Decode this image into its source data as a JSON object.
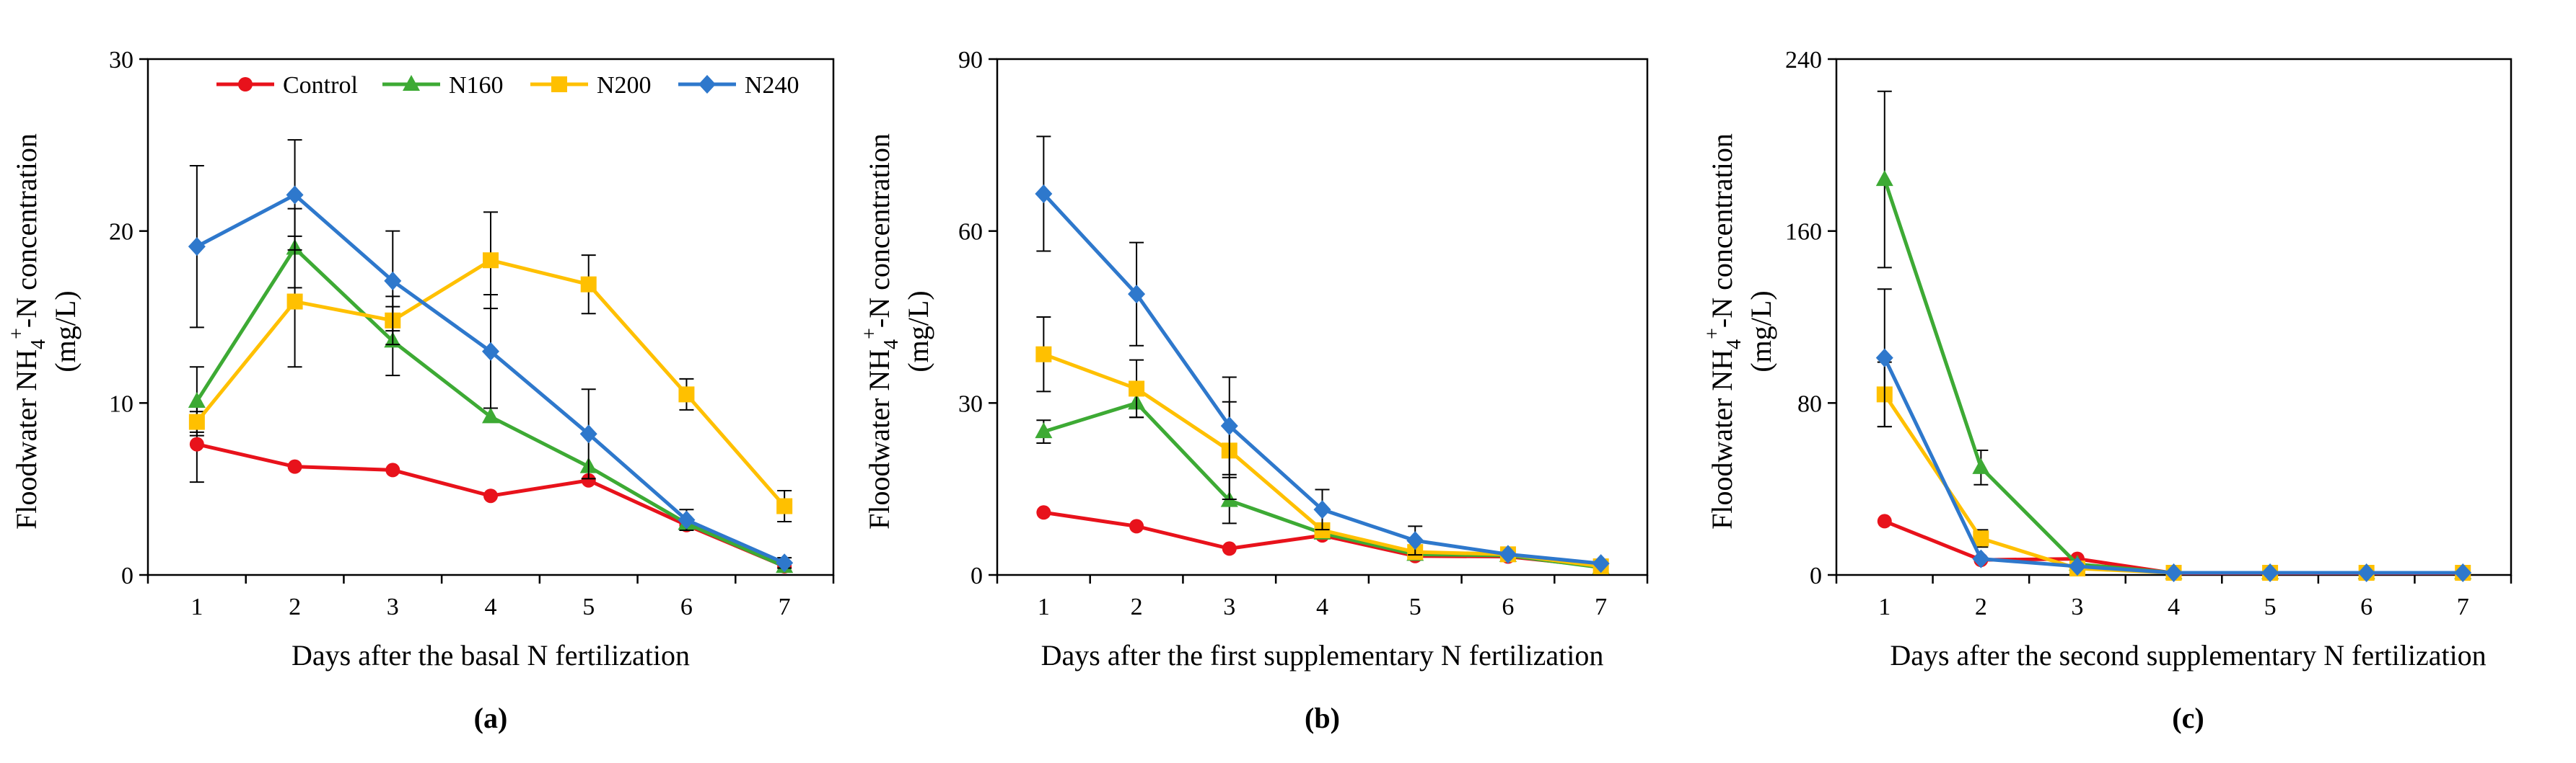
{
  "chart_data": [
    {
      "type": "line",
      "panel_label": "(a)",
      "xlabel": "Days after the basal N fertilization",
      "ylabel_main": "Floodwater NH",
      "ylabel_sub": "4",
      "ylabel_sup": "+",
      "ylabel_tail": "-N concentration",
      "ylabel_unit": "(mg/L)",
      "x": [
        1,
        2,
        3,
        4,
        5,
        6,
        7
      ],
      "x_ticks": [
        "1",
        "2",
        "3",
        "4",
        "5",
        "6",
        "7"
      ],
      "ylim": [
        0,
        30
      ],
      "y_ticks": [
        "0",
        "10",
        "20",
        "30"
      ],
      "legend_position": "top",
      "series": [
        {
          "name": "Control",
          "color": "#E8121B",
          "marker": "circle",
          "values": [
            7.6,
            6.3,
            6.1,
            4.6,
            5.5,
            2.9,
            0.5
          ],
          "errors": [
            2.2,
            0,
            0,
            0,
            0,
            0,
            0
          ]
        },
        {
          "name": "N160",
          "color": "#3DAA34",
          "marker": "triangle",
          "values": [
            10.1,
            19.0,
            13.6,
            9.2,
            6.3,
            3.0,
            0.5
          ],
          "errors": [
            2.0,
            2.3,
            2.0,
            0,
            0,
            0,
            0
          ]
        },
        {
          "name": "N200",
          "color": "#FFC000",
          "marker": "square",
          "values": [
            8.9,
            15.9,
            14.8,
            18.3,
            16.9,
            10.5,
            4.0
          ],
          "errors": [
            0.6,
            3.8,
            1.4,
            2.8,
            1.7,
            0.9,
            0.9
          ]
        },
        {
          "name": "N240",
          "color": "#2E78CC",
          "marker": "diamond",
          "values": [
            19.1,
            22.1,
            17.1,
            13.0,
            8.2,
            3.2,
            0.7
          ],
          "errors": [
            4.7,
            3.2,
            2.9,
            3.3,
            2.6,
            0.6,
            0.3
          ]
        }
      ]
    },
    {
      "type": "line",
      "panel_label": "(b)",
      "xlabel": "Days after the first supplementary N fertilization",
      "ylabel_main": "Floodwater NH",
      "ylabel_sub": "4",
      "ylabel_sup": "+",
      "ylabel_tail": "-N concentration",
      "ylabel_unit": "(mg/L)",
      "x": [
        1,
        2,
        3,
        4,
        5,
        6,
        7
      ],
      "x_ticks": [
        "1",
        "2",
        "3",
        "4",
        "5",
        "6",
        "7"
      ],
      "ylim": [
        0,
        90
      ],
      "y_ticks": [
        "0",
        "30",
        "60",
        "90"
      ],
      "series": [
        {
          "name": "Control",
          "color": "#E8121B",
          "marker": "circle",
          "values": [
            10.9,
            8.5,
            4.6,
            6.9,
            3.3,
            3.2,
            1.5
          ],
          "errors": [
            0,
            0,
            0,
            0,
            0,
            0,
            0
          ]
        },
        {
          "name": "N160",
          "color": "#3DAA34",
          "marker": "triangle",
          "values": [
            25.0,
            30.0,
            13.0,
            7.3,
            3.6,
            3.4,
            1.3
          ],
          "errors": [
            2.0,
            2.5,
            4.0,
            0,
            0,
            0,
            0
          ]
        },
        {
          "name": "N200",
          "color": "#FFC000",
          "marker": "square",
          "values": [
            38.5,
            32.5,
            21.7,
            7.8,
            4.0,
            3.6,
            1.5
          ],
          "errors": [
            6.5,
            5.0,
            8.5,
            0,
            0,
            0,
            0
          ]
        },
        {
          "name": "N240",
          "color": "#2E78CC",
          "marker": "diamond",
          "values": [
            66.5,
            49.0,
            26.0,
            11.4,
            6.0,
            3.6,
            2.0
          ],
          "errors": [
            10.0,
            9.0,
            8.5,
            3.5,
            2.5,
            0,
            0
          ]
        }
      ]
    },
    {
      "type": "line",
      "panel_label": "(c)",
      "xlabel": "Days after the second supplementary N fertilization",
      "ylabel_main": "Floodwater NH",
      "ylabel_sub": "4",
      "ylabel_sup": "+",
      "ylabel_tail": "-N concentration",
      "ylabel_unit": "(mg/L)",
      "x": [
        1,
        2,
        3,
        4,
        5,
        6,
        7
      ],
      "x_ticks": [
        "1",
        "2",
        "3",
        "4",
        "5",
        "6",
        "7"
      ],
      "ylim": [
        0,
        240
      ],
      "y_ticks": [
        "0",
        "80",
        "160",
        "240"
      ],
      "series": [
        {
          "name": "Control",
          "color": "#E8121B",
          "marker": "circle",
          "values": [
            25.0,
            7.0,
            7.5,
            0.8,
            0.8,
            0.8,
            0.8
          ],
          "errors": [
            0,
            0,
            0,
            0,
            0,
            0,
            0
          ]
        },
        {
          "name": "N160",
          "color": "#3DAA34",
          "marker": "triangle",
          "values": [
            184.0,
            50.0,
            5.0,
            1.0,
            1.0,
            1.0,
            1.0
          ],
          "errors": [
            41.0,
            8.0,
            0,
            0,
            0,
            0,
            0
          ]
        },
        {
          "name": "N200",
          "color": "#FFC000",
          "marker": "square",
          "values": [
            84.0,
            17.0,
            3.0,
            1.0,
            1.0,
            1.0,
            1.0
          ],
          "errors": [
            15.0,
            4.0,
            0,
            0,
            0,
            0,
            0
          ]
        },
        {
          "name": "N240",
          "color": "#2E78CC",
          "marker": "diamond",
          "values": [
            101.0,
            7.5,
            4.0,
            1.0,
            1.0,
            1.0,
            1.0
          ],
          "errors": [
            32.0,
            0,
            0,
            0,
            0,
            0,
            0
          ]
        }
      ]
    }
  ]
}
